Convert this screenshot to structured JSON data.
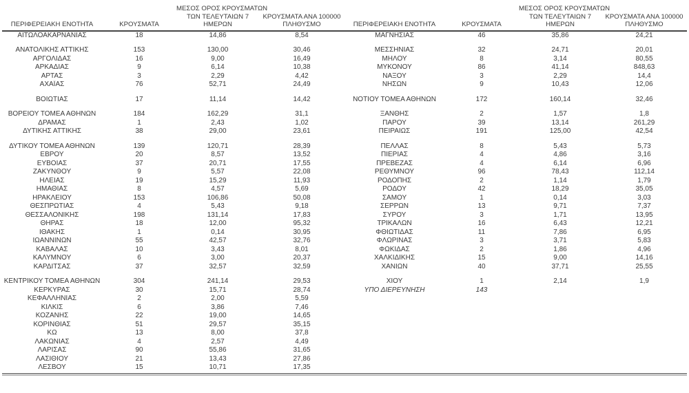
{
  "colors": {
    "text": "#3a3a3a",
    "header_rule": "#454545",
    "bottom_rule": "#8a8a8a",
    "background": "#ffffff"
  },
  "header": {
    "region": "ΠΕΡΙΦΕΡΕΙΑΚΗ ΕΝΟΤΗΤΑ",
    "cases": "ΚΡΟΥΣΜΑΤΑ",
    "avg7_line1": "ΜΕΣΟΣ ΟΡΟΣ ΚΡΟΥΣΜΑΤΩΝ",
    "avg7_line2": "ΤΩΝ ΤΕΛΕΥΤΑΙΩΝ 7",
    "avg7_line3": "ΗΜΕΡΩΝ",
    "per100k_line1": "ΚΡΟΥΣΜΑΤΑ ΑΝΑ 100000",
    "per100k_line2": "ΠΛΗΘΥΣΜΟ"
  },
  "left_table": {
    "rows": [
      {
        "region": "ΑΙΤΩΛΟΑΚΑΡΝΑΝΙΑΣ",
        "cases": "18",
        "avg7": "14,86",
        "per100k": "8,54"
      },
      {
        "spacer": true
      },
      {
        "region": "ΑΝΑΤΟΛΙΚΗΣ ΑΤΤΙΚΗΣ",
        "cases": "153",
        "avg7": "130,00",
        "per100k": "30,46"
      },
      {
        "region": "ΑΡΓΟΛΙΔΑΣ",
        "cases": "16",
        "avg7": "9,00",
        "per100k": "16,49"
      },
      {
        "region": "ΑΡΚΑΔΙΑΣ",
        "cases": "9",
        "avg7": "6,14",
        "per100k": "10,38"
      },
      {
        "region": "ΑΡΤΑΣ",
        "cases": "3",
        "avg7": "2,29",
        "per100k": "4,42"
      },
      {
        "region": "ΑΧΑΪΑΣ",
        "cases": "76",
        "avg7": "52,71",
        "per100k": "24,49"
      },
      {
        "spacer": true
      },
      {
        "region": "ΒΟΙΩΤΙΑΣ",
        "cases": "17",
        "avg7": "11,14",
        "per100k": "14,42"
      },
      {
        "spacer": true
      },
      {
        "region": "ΒΟΡΕΙΟΥ ΤΟΜΕΑ ΑΘΗΝΩΝ",
        "cases": "184",
        "avg7": "162,29",
        "per100k": "31,1"
      },
      {
        "region": "ΔΡΑΜΑΣ",
        "cases": "1",
        "avg7": "2,43",
        "per100k": "1,02"
      },
      {
        "region": "ΔΥΤΙΚΗΣ ΑΤΤΙΚΗΣ",
        "cases": "38",
        "avg7": "29,00",
        "per100k": "23,61"
      },
      {
        "spacer": true
      },
      {
        "region": "ΔΥΤΙΚΟΥ ΤΟΜΕΑ ΑΘΗΝΩΝ",
        "cases": "139",
        "avg7": "120,71",
        "per100k": "28,39"
      },
      {
        "region": "ΕΒΡΟΥ",
        "cases": "20",
        "avg7": "8,57",
        "per100k": "13,52"
      },
      {
        "region": "ΕΥΒΟΙΑΣ",
        "cases": "37",
        "avg7": "20,71",
        "per100k": "17,55"
      },
      {
        "region": "ΖΑΚΥΝΘΟΥ",
        "cases": "9",
        "avg7": "5,57",
        "per100k": "22,08"
      },
      {
        "region": "ΗΛΕΙΑΣ",
        "cases": "19",
        "avg7": "15,29",
        "per100k": "11,93"
      },
      {
        "region": "ΗΜΑΘΙΑΣ",
        "cases": "8",
        "avg7": "4,57",
        "per100k": "5,69"
      },
      {
        "region": "ΗΡΑΚΛΕΙΟΥ",
        "cases": "153",
        "avg7": "106,86",
        "per100k": "50,08"
      },
      {
        "region": "ΘΕΣΠΡΩΤΙΑΣ",
        "cases": "4",
        "avg7": "5,43",
        "per100k": "9,18"
      },
      {
        "region": "ΘΕΣΣΑΛΟΝΙΚΗΣ",
        "cases": "198",
        "avg7": "131,14",
        "per100k": "17,83"
      },
      {
        "region": "ΘΗΡΑΣ",
        "cases": "18",
        "avg7": "12,00",
        "per100k": "95,32"
      },
      {
        "region": "ΙΘΑΚΗΣ",
        "cases": "1",
        "avg7": "0,14",
        "per100k": "30,95"
      },
      {
        "region": "ΙΩΑΝΝΙΝΩΝ",
        "cases": "55",
        "avg7": "42,57",
        "per100k": "32,76"
      },
      {
        "region": "ΚΑΒΑΛΑΣ",
        "cases": "10",
        "avg7": "3,43",
        "per100k": "8,01"
      },
      {
        "region": "ΚΑΛΥΜΝΟΥ",
        "cases": "6",
        "avg7": "3,00",
        "per100k": "20,37"
      },
      {
        "region": "ΚΑΡΔΙΤΣΑΣ",
        "cases": "37",
        "avg7": "32,57",
        "per100k": "32,59"
      },
      {
        "spacer": true
      },
      {
        "region": "ΚΕΝΤΡΙΚΟΥ ΤΟΜΕΑ ΑΘΗΝΩΝ",
        "cases": "304",
        "avg7": "241,14",
        "per100k": "29,53"
      },
      {
        "region": "ΚΕΡΚΥΡΑΣ",
        "cases": "30",
        "avg7": "15,71",
        "per100k": "28,74"
      },
      {
        "region": "ΚΕΦΑΛΛΗΝΙΑΣ",
        "cases": "2",
        "avg7": "2,00",
        "per100k": "5,59"
      },
      {
        "region": "ΚΙΛΚΙΣ",
        "cases": "6",
        "avg7": "3,86",
        "per100k": "7,46"
      },
      {
        "region": "ΚΟΖΑΝΗΣ",
        "cases": "22",
        "avg7": "19,00",
        "per100k": "14,65"
      },
      {
        "region": "ΚΟΡΙΝΘΙΑΣ",
        "cases": "51",
        "avg7": "29,57",
        "per100k": "35,15"
      },
      {
        "region": "ΚΩ",
        "cases": "13",
        "avg7": "8,00",
        "per100k": "37,8"
      },
      {
        "region": "ΛΑΚΩΝΙΑΣ",
        "cases": "4",
        "avg7": "2,57",
        "per100k": "4,49"
      },
      {
        "region": "ΛΑΡΙΣΑΣ",
        "cases": "90",
        "avg7": "55,86",
        "per100k": "31,65"
      },
      {
        "region": "ΛΑΣΙΘΙΟΥ",
        "cases": "21",
        "avg7": "13,43",
        "per100k": "27,86"
      },
      {
        "region": "ΛΕΣΒΟΥ",
        "cases": "15",
        "avg7": "10,71",
        "per100k": "17,35"
      }
    ]
  },
  "right_table": {
    "rows": [
      {
        "region": "ΜΑΓΝΗΣΙΑΣ",
        "cases": "46",
        "avg7": "35,86",
        "per100k": "24,21"
      },
      {
        "spacer": true
      },
      {
        "region": "ΜΕΣΣΗΝΙΑΣ",
        "cases": "32",
        "avg7": "24,71",
        "per100k": "20,01"
      },
      {
        "region": "ΜΗΛΟΥ",
        "cases": "8",
        "avg7": "3,14",
        "per100k": "80,55"
      },
      {
        "region": "ΜΥΚΟΝΟΥ",
        "cases": "86",
        "avg7": "41,14",
        "per100k": "848,63"
      },
      {
        "region": "ΝΑΞΟΥ",
        "cases": "3",
        "avg7": "2,29",
        "per100k": "14,4"
      },
      {
        "region": "ΝΗΣΩΝ",
        "cases": "9",
        "avg7": "10,43",
        "per100k": "12,06"
      },
      {
        "spacer": true
      },
      {
        "region": "ΝΟΤΙΟΥ ΤΟΜΕΑ ΑΘΗΝΩΝ",
        "cases": "172",
        "avg7": "160,14",
        "per100k": "32,46"
      },
      {
        "spacer": true
      },
      {
        "region": "ΞΑΝΘΗΣ",
        "cases": "2",
        "avg7": "1,57",
        "per100k": "1,8"
      },
      {
        "region": "ΠΑΡΟΥ",
        "cases": "39",
        "avg7": "13,14",
        "per100k": "261,29"
      },
      {
        "region": "ΠΕΙΡΑΙΩΣ",
        "cases": "191",
        "avg7": "125,00",
        "per100k": "42,54"
      },
      {
        "spacer": true
      },
      {
        "region": "ΠΕΛΛΑΣ",
        "cases": "8",
        "avg7": "5,43",
        "per100k": "5,73"
      },
      {
        "region": "ΠΙΕΡΙΑΣ",
        "cases": "4",
        "avg7": "4,86",
        "per100k": "3,16"
      },
      {
        "region": "ΠΡΕΒΕΖΑΣ",
        "cases": "4",
        "avg7": "6,14",
        "per100k": "6,96"
      },
      {
        "region": "ΡΕΘΥΜΝΟΥ",
        "cases": "96",
        "avg7": "78,43",
        "per100k": "112,14"
      },
      {
        "region": "ΡΟΔΟΠΗΣ",
        "cases": "2",
        "avg7": "1,14",
        "per100k": "1,79"
      },
      {
        "region": "ΡΟΔΟΥ",
        "cases": "42",
        "avg7": "18,29",
        "per100k": "35,05"
      },
      {
        "region": "ΣΑΜΟΥ",
        "cases": "1",
        "avg7": "0,14",
        "per100k": "3,03"
      },
      {
        "region": "ΣΕΡΡΩΝ",
        "cases": "13",
        "avg7": "9,71",
        "per100k": "7,37"
      },
      {
        "region": "ΣΥΡΟΥ",
        "cases": "3",
        "avg7": "1,71",
        "per100k": "13,95"
      },
      {
        "region": "ΤΡΙΚΑΛΩΝ",
        "cases": "16",
        "avg7": "6,43",
        "per100k": "12,21"
      },
      {
        "region": "ΦΘΙΩΤΙΔΑΣ",
        "cases": "11",
        "avg7": "7,86",
        "per100k": "6,95"
      },
      {
        "region": "ΦΛΩΡΙΝΑΣ",
        "cases": "3",
        "avg7": "3,71",
        "per100k": "5,83"
      },
      {
        "region": "ΦΩΚΙΔΑΣ",
        "cases": "2",
        "avg7": "1,86",
        "per100k": "4,96"
      },
      {
        "region": "ΧΑΛΚΙΔΙΚΗΣ",
        "cases": "15",
        "avg7": "9,00",
        "per100k": "14,16"
      },
      {
        "region": "ΧΑΝΙΩΝ",
        "cases": "40",
        "avg7": "37,71",
        "per100k": "25,55"
      },
      {
        "spacer": true
      },
      {
        "region": "ΧΙΟΥ",
        "cases": "1",
        "avg7": "2,14",
        "per100k": "1,9"
      },
      {
        "region": "ΥΠΟ ΔΙΕΡΕΥΝΗΣΗ",
        "cases": "143",
        "avg7": "",
        "per100k": "",
        "italic": true
      }
    ]
  }
}
